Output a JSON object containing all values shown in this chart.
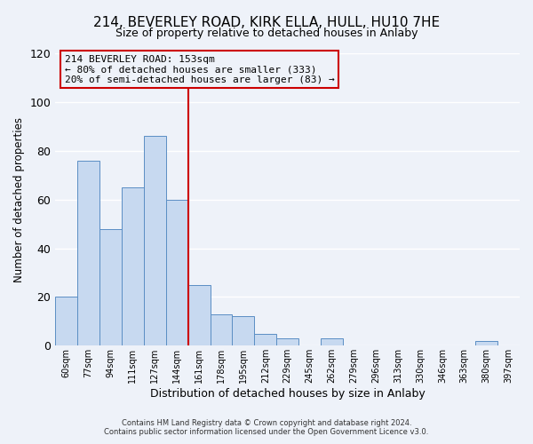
{
  "title_line1": "214, BEVERLEY ROAD, KIRK ELLA, HULL, HU10 7HE",
  "title_line2": "Size of property relative to detached houses in Anlaby",
  "xlabel": "Distribution of detached houses by size in Anlaby",
  "ylabel": "Number of detached properties",
  "bar_labels": [
    "60sqm",
    "77sqm",
    "94sqm",
    "111sqm",
    "127sqm",
    "144sqm",
    "161sqm",
    "178sqm",
    "195sqm",
    "212sqm",
    "229sqm",
    "245sqm",
    "262sqm",
    "279sqm",
    "296sqm",
    "313sqm",
    "330sqm",
    "346sqm",
    "363sqm",
    "380sqm",
    "397sqm"
  ],
  "bar_values": [
    20,
    76,
    48,
    65,
    86,
    60,
    25,
    13,
    12,
    5,
    3,
    0,
    3,
    0,
    0,
    0,
    0,
    0,
    0,
    2,
    0
  ],
  "bar_color": "#c7d9f0",
  "bar_edge_color": "#5b8ec4",
  "vline_color": "#cc0000",
  "annotation_line1": "214 BEVERLEY ROAD: 153sqm",
  "annotation_line2": "← 80% of detached houses are smaller (333)",
  "annotation_line3": "20% of semi-detached houses are larger (83) →",
  "box_edge_color": "#cc0000",
  "ylim": [
    0,
    120
  ],
  "yticks": [
    0,
    20,
    40,
    60,
    80,
    100,
    120
  ],
  "footer_line1": "Contains HM Land Registry data © Crown copyright and database right 2024.",
  "footer_line2": "Contains public sector information licensed under the Open Government Licence v3.0.",
  "bg_color": "#eef2f9",
  "grid_color": "#ffffff"
}
